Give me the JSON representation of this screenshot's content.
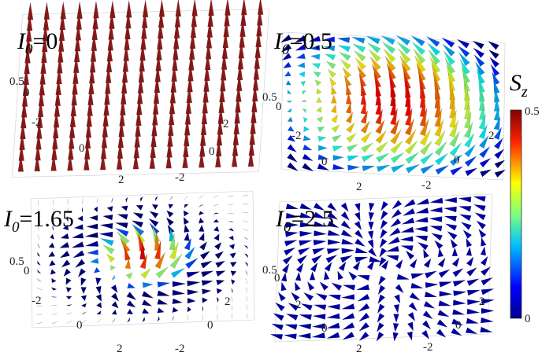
{
  "panels": [
    {
      "label": {
        "symbol": "I",
        "subscript": "0",
        "rest": "=0"
      },
      "z_ticks": [
        "0.5",
        "0"
      ],
      "x_ticks": [
        "-2",
        "0",
        "2"
      ],
      "y_ticks": [
        "2",
        "0",
        "-2"
      ]
    },
    {
      "label": {
        "symbol": "I",
        "subscript": "0",
        "rest": "=0.5"
      },
      "z_ticks": [
        "0.5",
        "0"
      ],
      "x_ticks": [
        "-2",
        "0",
        "2"
      ],
      "y_ticks": [
        "2",
        "0",
        "-2"
      ]
    },
    {
      "label": {
        "symbol": "I",
        "subscript": "0",
        "rest": "=1.65"
      },
      "z_ticks": [
        "0.5",
        "0"
      ],
      "x_ticks": [
        "-2",
        "0",
        "2"
      ],
      "y_ticks": [
        "2",
        "0",
        "-2"
      ]
    },
    {
      "label": {
        "symbol": "I",
        "subscript": "0",
        "rest": "=2.5"
      },
      "z_ticks": [
        "0.5",
        "0"
      ],
      "x_ticks": [
        "-2",
        "0",
        "2"
      ],
      "y_ticks": [
        "2",
        "0",
        "-2"
      ]
    }
  ],
  "colorbar": {
    "title": {
      "symbol": "S",
      "subscript": "z"
    },
    "ticks": [
      "0.5",
      "0"
    ]
  }
}
